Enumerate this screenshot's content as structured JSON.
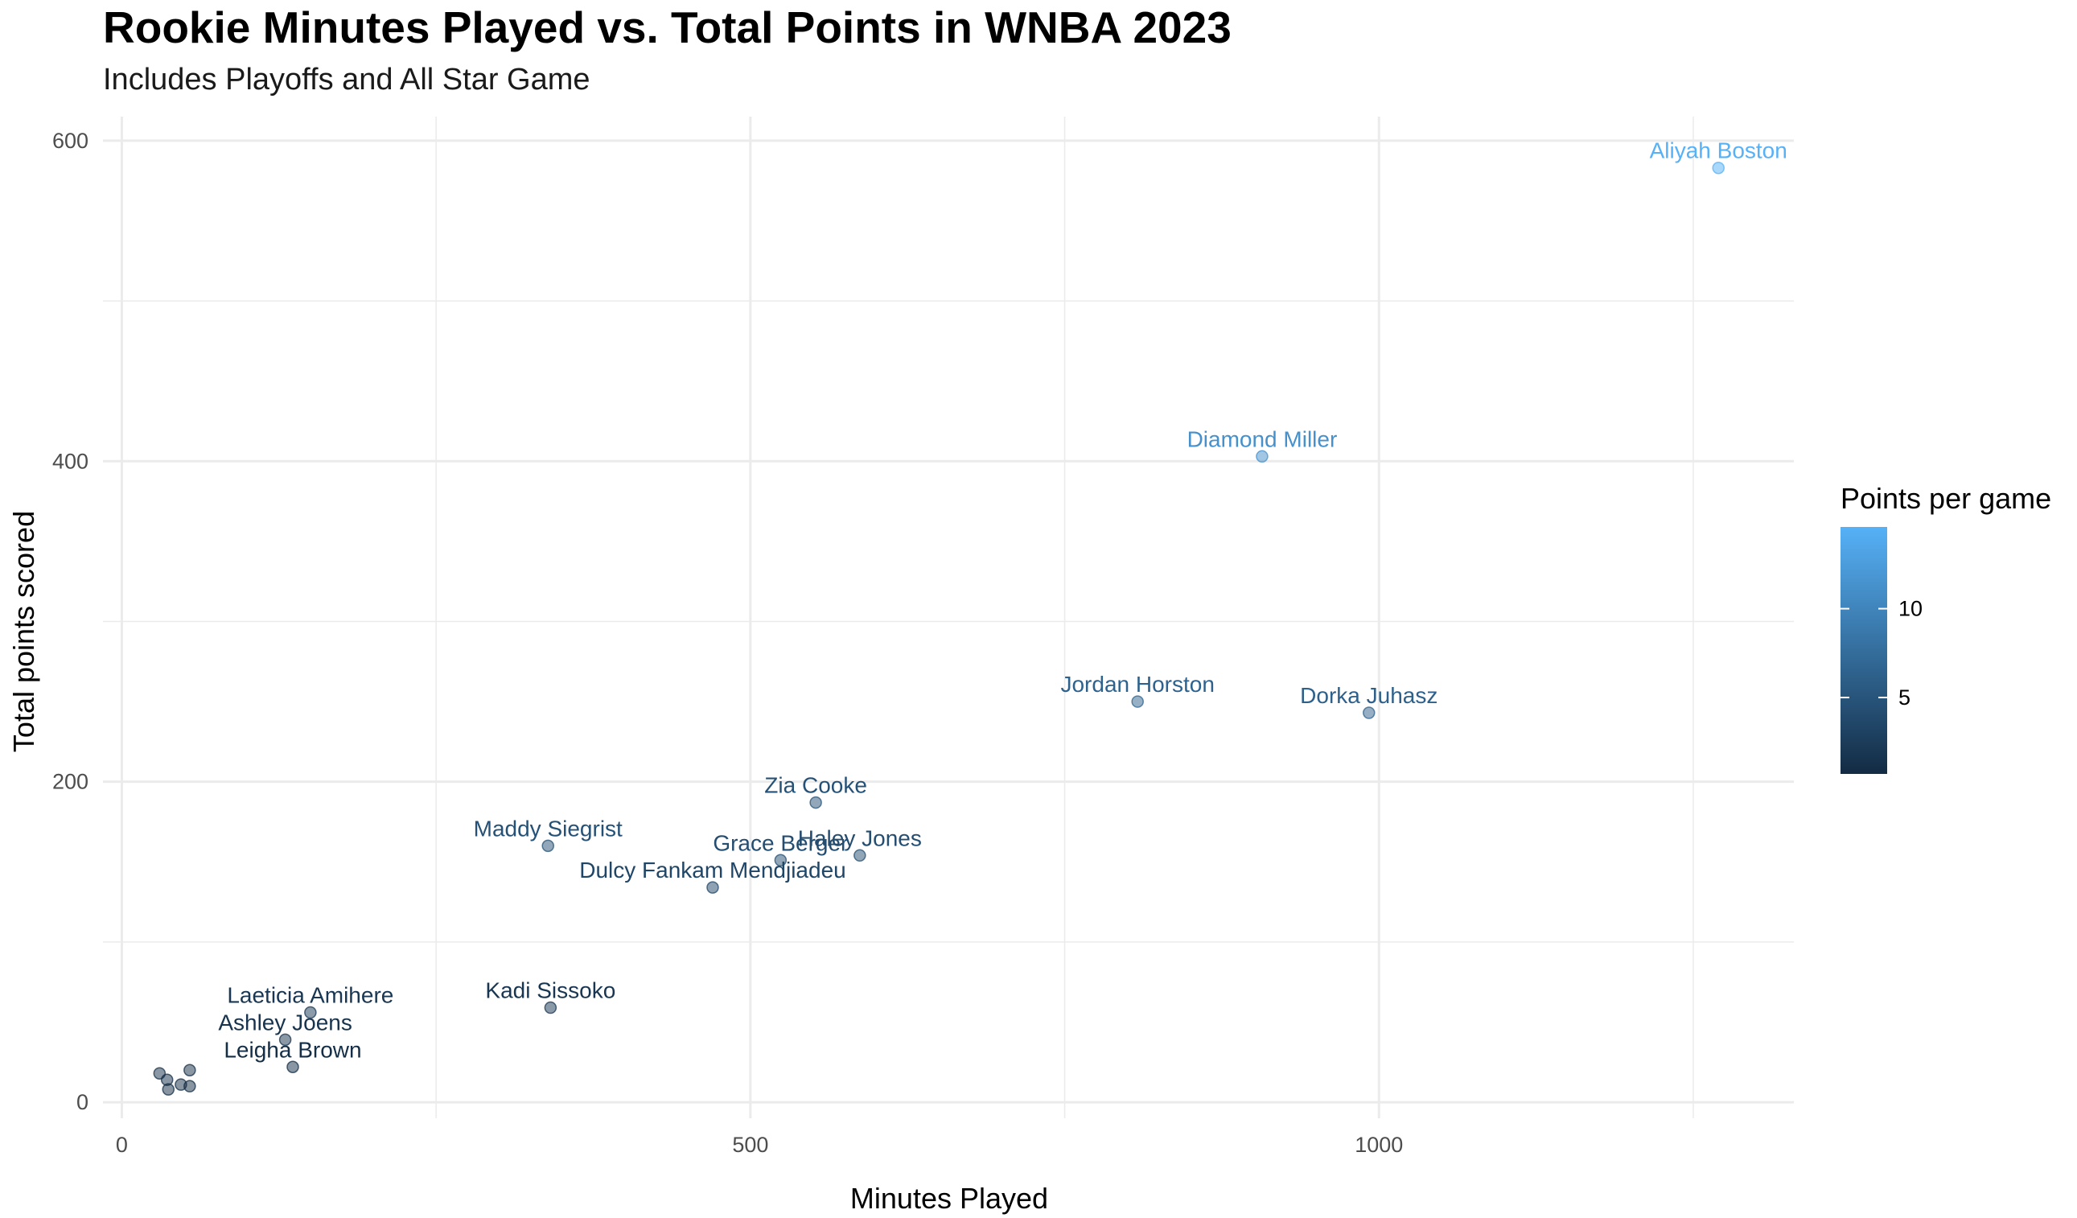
{
  "chart_data": {
    "type": "scatter",
    "title": "Rookie Minutes Played vs. Total Points in WNBA 2023",
    "subtitle": "Includes Playoffs and All Star Game",
    "xlabel": "Minutes Played",
    "ylabel": "Total points scored",
    "xlim": [
      -15,
      1330
    ],
    "ylim": [
      -10,
      615
    ],
    "x_ticks": [
      0,
      500,
      1000
    ],
    "y_ticks": [
      0,
      200,
      400,
      600
    ],
    "grid": true,
    "legend": {
      "title": "Points per game",
      "placement": "right",
      "type": "gradient",
      "range": [
        0.7,
        14.6
      ],
      "ticks": [
        5,
        10
      ],
      "low_color": "#132b43",
      "high_color": "#56b1f7"
    },
    "points": [
      {
        "label": "Aliyah Boston",
        "x": 1270,
        "y": 583,
        "ppg": 14.6
      },
      {
        "label": "Diamond Miller",
        "x": 907,
        "y": 403,
        "ppg": 11.2
      },
      {
        "label": "Jordan Horston",
        "x": 808,
        "y": 250,
        "ppg": 6.4
      },
      {
        "label": "Dorka Juhasz",
        "x": 992,
        "y": 243,
        "ppg": 6.2
      },
      {
        "label": "Zia Cooke",
        "x": 552,
        "y": 187,
        "ppg": 4.6
      },
      {
        "label": "Maddy Siegrist",
        "x": 339,
        "y": 160,
        "ppg": 4.6
      },
      {
        "label": "Grace Berger",
        "x": 524,
        "y": 151,
        "ppg": 4.2
      },
      {
        "label": "Haley Jones",
        "x": 587,
        "y": 154,
        "ppg": 4.2
      },
      {
        "label": "Dulcy Fankam Mendjiadeu",
        "x": 470,
        "y": 134,
        "ppg": 3.5
      },
      {
        "label": "Kadi Sissoko",
        "x": 341,
        "y": 59,
        "ppg": 1.8
      },
      {
        "label": "Laeticia Amihere",
        "x": 150,
        "y": 56,
        "ppg": 1.9
      },
      {
        "label": "Ashley Joens",
        "x": 130,
        "y": 39,
        "ppg": 1.5
      },
      {
        "label": "Leigha Brown",
        "x": 136,
        "y": 22,
        "ppg": 1.0
      },
      {
        "label": "",
        "x": 30,
        "y": 18,
        "ppg": 1.2
      },
      {
        "label": "",
        "x": 36,
        "y": 14,
        "ppg": 1.0
      },
      {
        "label": "",
        "x": 37,
        "y": 8,
        "ppg": 0.8
      },
      {
        "label": "",
        "x": 47,
        "y": 11,
        "ppg": 0.9
      },
      {
        "label": "",
        "x": 54,
        "y": 20,
        "ppg": 1.1
      },
      {
        "label": "",
        "x": 54,
        "y": 10,
        "ppg": 0.8
      }
    ]
  }
}
